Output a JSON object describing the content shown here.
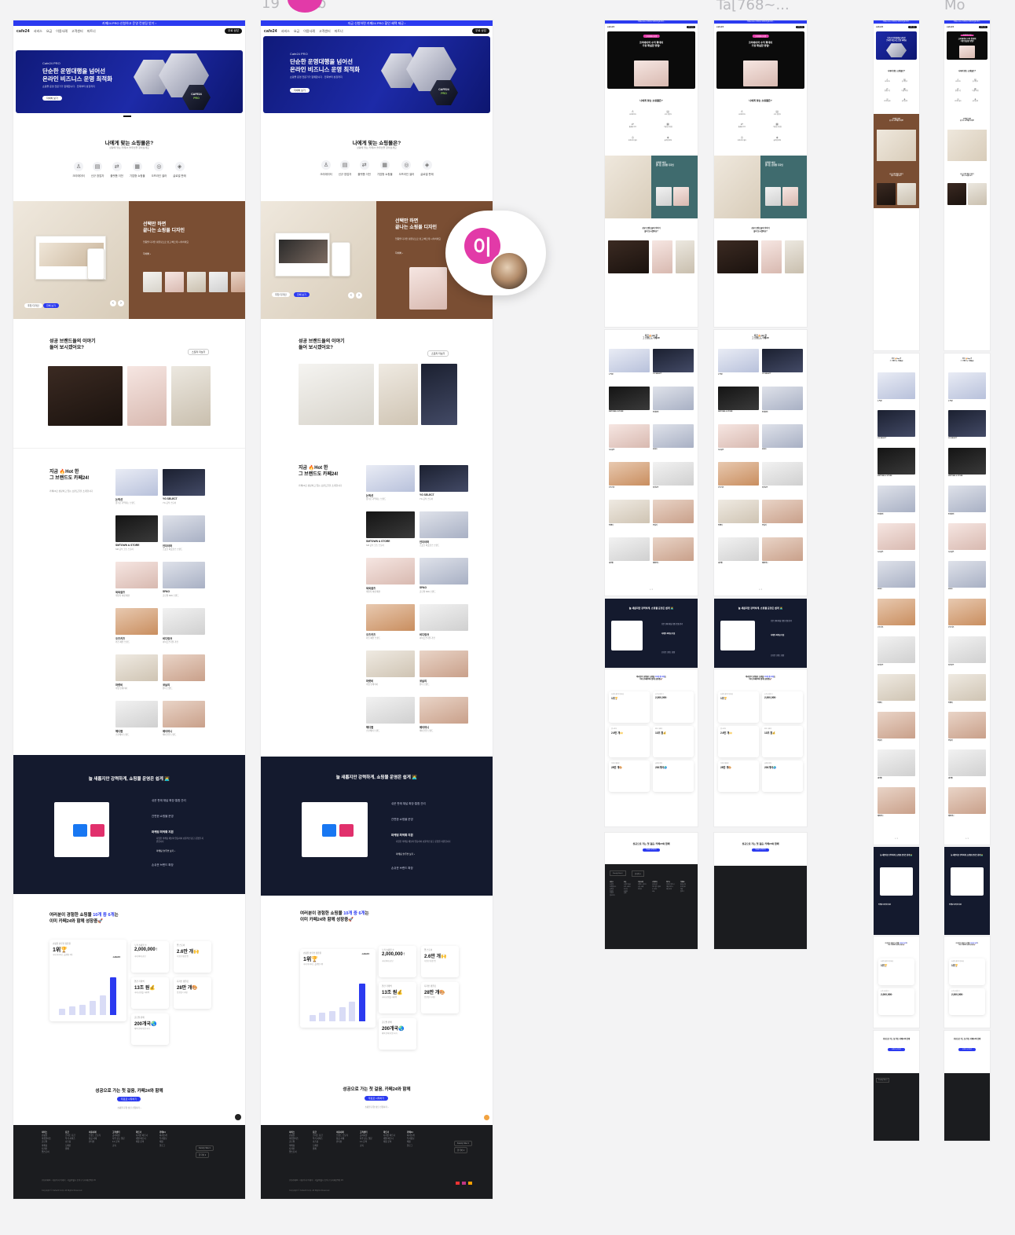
{
  "frame_labels": {
    "tablet": "Ta[768~...",
    "mobile": "Mo",
    "desktop_b": "19",
    "desktop_b_tail": "b"
  },
  "topbar": {
    "text": "카페24 PRO 신청하고 운영 컨설팅 받기 ›",
    "text_b": "지금 신청하면 카페24 PRO 할인 혜택 제공 ›"
  },
  "nav": {
    "logo": "cafe24",
    "items": [
      "서비스",
      "요금",
      "이용사례",
      "고객센터",
      "파트너"
    ],
    "cta": "무료 상담",
    "login": "로그인"
  },
  "hero": {
    "eyebrow": "Cafe24 PRO",
    "title_l1": "단순한 운영대행을 넘어선",
    "title_l2": "온라인 비즈니스 운영 최적화",
    "desc": "쇼핑몰 운영 전문가가 함께합니다 · 전략부터 성장까지",
    "button": "자세히 보기",
    "badge_l1": "CAFE24",
    "badge_l2": "PRO",
    "mobile_tag": "크리에이터 지원",
    "mobile_title_l1": "크리에이터 수익 확대의",
    "mobile_title_l2": "가장 확실한 방법!",
    "mobile_title_b_l1": "크리에이터 수익 확대의",
    "mobile_title_b_l2": "가장 확실한 방법!"
  },
  "finder": {
    "title": "나에게 맞는 쇼핑몰은?",
    "subtitle": "상황에 맞는 카페24 솔루션을 찾아보세요",
    "items": [
      {
        "icon": "♙",
        "label": "크리에이터"
      },
      {
        "icon": "▤",
        "label": "신규 창업자"
      },
      {
        "icon": "⇄",
        "label": "플랫폼 이전"
      },
      {
        "icon": "▦",
        "label": "기업형 쇼핑몰"
      },
      {
        "icon": "◎",
        "label": "오프라인 셀러"
      },
      {
        "icon": "◈",
        "label": "글로벌 판매"
      }
    ]
  },
  "design": {
    "title_l1": "선택만 하면",
    "title_l2": "끝나는 쇼핑몰 디자인",
    "desc": "업종별 디자인 템플릿으로 쉽고 빠르게 시작하세요",
    "more": "자세히 ›",
    "tab_a": "추천 디자인",
    "tab_b": "전체 보기",
    "thumb_labels": [
      "뷰티",
      "리빙",
      "패션",
      "푸드",
      "키즈"
    ]
  },
  "stories": {
    "title_l1": "성공 브랜드들의 이야기",
    "title_l2": "들어 보시겠어요?",
    "more": "스토리 더보기",
    "card_title": "브랜드 스토리"
  },
  "hot": {
    "title_l1": "지금 🔥Hot 한",
    "title_l2": "그 브랜드도 카페24!",
    "desc": "카페24로 성장하고 있는 브랜드들을 소개합니다",
    "brands": [
      {
        "name": "논픽션",
        "desc": "향기로 기억되는 브랜드"
      },
      {
        "name": "YG SELECT",
        "desc": "YG 공식 스토어"
      },
      {
        "name": "SMTOWN & STORE",
        "desc": "SM 공식 굿즈 스토어"
      },
      {
        "name": "언더아머",
        "desc": "스포츠 퍼포먼스 브랜드"
      },
      {
        "name": "육육걸즈",
        "desc": "데일리 여성 패션"
      },
      {
        "name": "SPAO",
        "desc": "글로벌 SPA 브랜드"
      },
      {
        "name": "오즈키즈",
        "desc": "키즈 패션 브랜드"
      },
      {
        "name": "비디링크",
        "desc": "라이프스타일 가전"
      },
      {
        "name": "마켓비",
        "desc": "리빙 인테리어"
      },
      {
        "name": "코닐리",
        "desc": "뷰티 브랜드"
      },
      {
        "name": "헤디랩",
        "desc": "스킨케어 브랜드"
      },
      {
        "name": "에이미니",
        "desc": "메이크업 브랜드"
      }
    ],
    "page": "1 / 2"
  },
  "platform": {
    "title": "늘 새롭지만 강력하게, 쇼핑몰 운영은 쉽게 🧑‍💻",
    "features": [
      {
        "label": "쉬운 판매 채널 확장·통합 관리",
        "active": false
      },
      {
        "label": "간편한 쇼핑몰 운영",
        "active": false
      },
      {
        "label": "마케팅 최적화 지원",
        "active": true
      },
      {
        "label": "손쉬운 브랜드 확장",
        "active": false
      }
    ],
    "active_desc": "다양한 마케팅 채널과 연동하여 효율적인 광고 운영을 지원합니다",
    "active_link": "마케팅 솔루션 보기 ›"
  },
  "stats": {
    "title_l1a": "여러분이 경험한 쇼핑몰 ",
    "title_l1b": "10개 중 6개",
    "title_l1c": "는",
    "title_l2": "이미 카페24와 함께 성장중🚀",
    "main_card": {
      "k": "쇼핑몰 솔루션 점유율",
      "v": "1위🏆",
      "d": "국내 이커머스 플랫폼 1위",
      "logo": "cafe24"
    },
    "bars": [
      0.14,
      0.2,
      0.24,
      0.32,
      0.44,
      0.86
    ],
    "cards": [
      {
        "k": "누적 쇼핑몰 수",
        "v": "2,000,000↑",
        "d": "국내 최대 규모"
      },
      {
        "k": "앱 스토어",
        "v": "2.6만 개🙌",
        "d": "다양한 확장 앱"
      },
      {
        "k": "연간 거래액",
        "v": "13조 원💰",
        "d": "국내 쇼핑몰 거래액"
      },
      {
        "k": "디자인 템플릿",
        "v": "28만 개🎨",
        "d": "업종별 디자인"
      },
      {
        "k": "글로벌 판매",
        "v": "200개국🌏",
        "d": "해외 판매 지원 국가"
      }
    ]
  },
  "cta": {
    "title": "성공으로 가는 첫 걸음, 카페24와 함께",
    "button": "무료로 시작하기",
    "note": "쇼핑몰 운영 상담 신청하기 ›"
  },
  "footer": {
    "cols": [
      {
        "h": "서비스",
        "items": "쇼핑몰\n마켓플러스\n글로벌\n마케팅\n디자인\n앱스토어"
      },
      {
        "h": "요금",
        "items": "스마트 요금\n부가 서비스\n호스팅\n도메인\n결제"
      },
      {
        "h": "이용사례",
        "items": "브랜드 스토리\n성공 사례\n인터뷰"
      },
      {
        "h": "고객센터",
        "items": "공지사항\n자주 묻는 질문\n1:1 문의\n교육"
      },
      {
        "h": "파트너",
        "items": "디자인 파트너\n개발 파트너\n제휴 문의"
      },
      {
        "h": "카페24",
        "items": "회사소개\n투자정보\n채용\n블로그"
      }
    ],
    "company": "(주)카페24 · 대표이사 이재석 · 서울특별시 동작구 보라매로5길 15",
    "copyright": "Copyright © Cafe24 Corp. All Rights Reserved.",
    "select_a": "Family Site ▾",
    "select_b": "한국어 ▾"
  },
  "avatar": {
    "letter": "이"
  },
  "colors": {
    "brand_blue": "#2b3af0",
    "hero_navy": "#1d2aa8",
    "brown": "#7a4e33",
    "dark_navy": "#141a2e",
    "footer": "#1b1c1f",
    "pink": "#e23aa8"
  }
}
